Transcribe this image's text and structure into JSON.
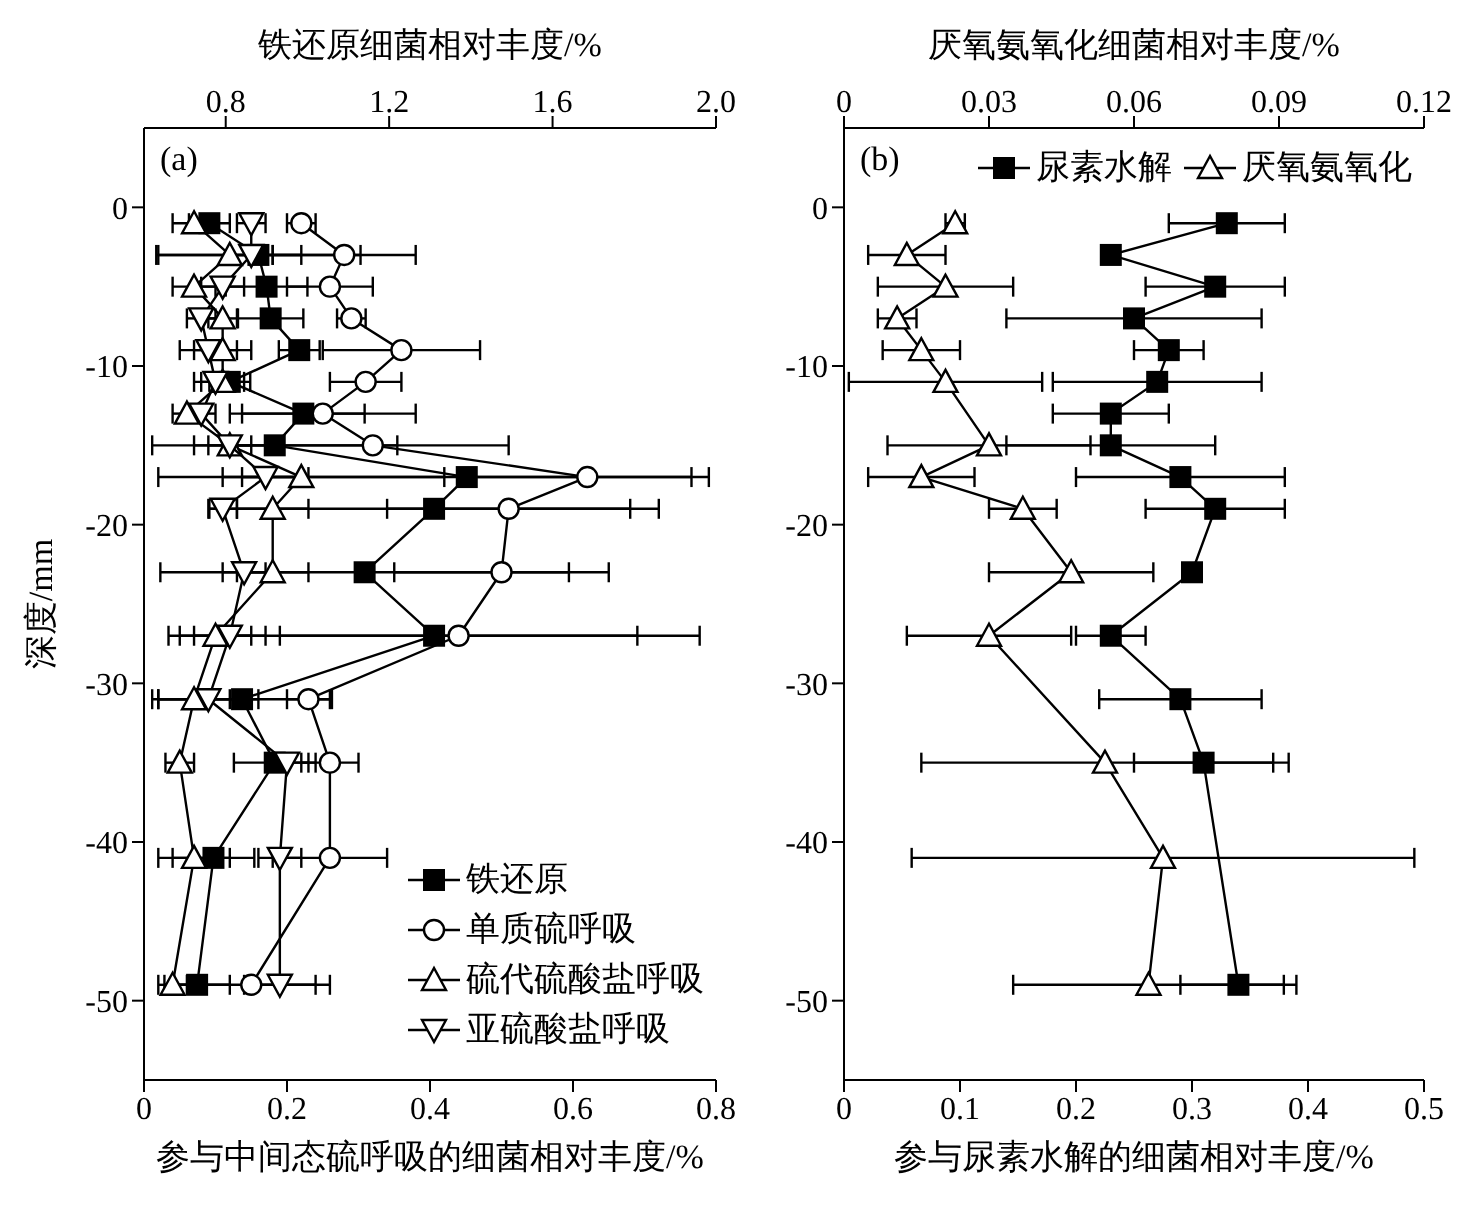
{
  "chart_data": [
    {
      "type": "line",
      "annotations": [
        "(a)"
      ],
      "xlabel": "参与中间态硫呼吸的细菌相对丰度/%",
      "x2label": "铁还原细菌相对丰度/%",
      "ylabel": "深度/mm",
      "xlim": [
        0,
        0.8
      ],
      "xticks": [
        0,
        {
          "value": 0.2,
          "label": "0.2"
        },
        {
          "value": 0.4,
          "label": "0.4"
        },
        {
          "value": 0.6,
          "label": "0.6"
        },
        {
          "value": 0.8,
          "label": "0.8"
        }
      ],
      "x2lim": [
        0.6,
        2.0
      ],
      "x2ticks": [
        {
          "value": 0.8,
          "label": "0.8"
        },
        {
          "value": 1.2,
          "label": "1.2"
        },
        {
          "value": 1.6,
          "label": "1.6"
        },
        {
          "value": 2.0,
          "label": "2.0"
        }
      ],
      "ylim": [
        -55,
        5
      ],
      "yticks": [
        0,
        -10,
        -20,
        -30,
        -40,
        -50
      ],
      "legend": "bottom right",
      "series": [
        {
          "name": "铁还原",
          "color": "#000000",
          "values": [
            -1,
            -3,
            -5,
            -7,
            -9,
            -11,
            -13,
            -15,
            -17,
            -19,
            -23,
            -27,
            -31,
            -35,
            -41,
            -49
          ],
          "marker": "square",
          "axis": "x2",
          "x": [
            0.76,
            0.88,
            0.9,
            0.91,
            0.98,
            0.81,
            0.99,
            0.92,
            1.39,
            1.31,
            1.14,
            1.31,
            0.84,
            0.92,
            0.77,
            0.73
          ],
          "xerrors": [
            0.05,
            0.25,
            0.1,
            0.08,
            0.05,
            0.05,
            0.15,
            0.3,
            0.55,
            0.55,
            0.5,
            0.65,
            0.22,
            0.1,
            0.1,
            0.08
          ]
        },
        {
          "name": "单质硫呼吸",
          "color": "#000000",
          "values": [
            -1,
            -3,
            -5,
            -7,
            -9,
            -11,
            -13,
            -15,
            -17,
            -19,
            -23,
            -27,
            -31,
            -35,
            -41,
            -49
          ],
          "marker": "circle",
          "x": [
            0.22,
            0.28,
            0.26,
            0.29,
            0.36,
            0.31,
            0.25,
            0.32,
            0.62,
            0.51,
            0.5,
            0.44,
            0.23,
            0.26,
            0.26,
            0.15
          ],
          "xerrors": [
            0.02,
            0.1,
            0.06,
            0.02,
            0.11,
            0.05,
            0.13,
            0.19,
            0.17,
            0.17,
            0.15,
            0.25,
            0.03,
            0.04,
            0.08,
            0.11
          ]
        },
        {
          "name": "硫代硫酸盐呼吸",
          "color": "#000000",
          "values": [
            -1,
            -3,
            -5,
            -7,
            -9,
            -11,
            -13,
            -15,
            -17,
            -19,
            -23,
            -27,
            -31,
            -35,
            -41,
            -49
          ],
          "marker": "triangle",
          "x": [
            0.07,
            0.12,
            0.07,
            0.11,
            0.11,
            0.11,
            0.06,
            0.12,
            0.22,
            0.18,
            0.18,
            0.1,
            0.07,
            0.05,
            0.07,
            0.04
          ],
          "xerrors": [
            0.03,
            0.1,
            0.03,
            0.02,
            0.04,
            0.03,
            0.02,
            0.05,
            0.2,
            0.05,
            0.05,
            0.05,
            0.05,
            0.02,
            0.05,
            0.02
          ]
        },
        {
          "name": "亚硫酸盐呼吸",
          "color": "#000000",
          "values": [
            -1,
            -3,
            -5,
            -7,
            -9,
            -11,
            -13,
            -15,
            -17,
            -19,
            -23,
            -27,
            -31,
            -35,
            -41,
            -49
          ],
          "marker": "triangle-down",
          "x": [
            0.15,
            0.15,
            0.11,
            0.08,
            0.09,
            0.1,
            0.08,
            0.12,
            0.17,
            0.11,
            0.14,
            0.12,
            0.09,
            0.2,
            0.19,
            0.19
          ],
          "xerrors": [
            0.02,
            0.03,
            0.03,
            0.02,
            0.04,
            0.03,
            0.02,
            0.03,
            0.06,
            0.02,
            0.03,
            0.05,
            0.07,
            0.03,
            0.03,
            0.05
          ]
        }
      ]
    },
    {
      "type": "line",
      "annotations": [
        "(b)"
      ],
      "xlabel": "参与尿素水解的细菌相对丰度/%",
      "x2label": "厌氧氨氧化细菌相对丰度/%",
      "xlim": [
        0,
        0.5
      ],
      "xticks": [
        0,
        {
          "value": 0.1,
          "label": "0.1"
        },
        {
          "value": 0.2,
          "label": "0.2"
        },
        {
          "value": 0.3,
          "label": "0.3"
        },
        {
          "value": 0.4,
          "label": "0.4"
        },
        {
          "value": 0.5,
          "label": "0.5"
        }
      ],
      "x2lim": [
        0,
        0.12
      ],
      "x2ticks": [
        0,
        0.03,
        0.06,
        0.09,
        0.12
      ],
      "ylim": [
        -55,
        5
      ],
      "yticks": [
        0,
        -10,
        -20,
        -30,
        -40,
        -50
      ],
      "legend": "top right",
      "series": [
        {
          "name": "尿素水解",
          "color": "#000000",
          "values": [
            -1,
            -3,
            -5,
            -7,
            -9,
            -11,
            -13,
            -15,
            -17,
            -19,
            -23,
            -27,
            -31,
            -35,
            null,
            -49
          ],
          "marker": "square",
          "x": [
            0.33,
            0.23,
            0.32,
            0.25,
            0.28,
            0.27,
            0.23,
            0.23,
            0.29,
            0.32,
            0.3,
            0.23,
            0.29,
            0.31,
            null,
            0.34
          ],
          "xerrors": [
            0.05,
            null,
            0.06,
            0.11,
            0.03,
            0.09,
            0.05,
            0.09,
            0.09,
            0.06,
            null,
            0.03,
            0.07,
            0.06,
            null,
            0.05
          ]
        },
        {
          "name": "厌氧氨氧化",
          "color": "#000000",
          "values": [
            -1,
            -3,
            -5,
            -7,
            -9,
            -11,
            null,
            -15,
            -17,
            -19,
            -23,
            -27,
            null,
            -35,
            -41,
            -49
          ],
          "marker": "triangle",
          "axis": "x2",
          "x": [
            0.023,
            0.013,
            0.021,
            0.011,
            0.016,
            0.021,
            null,
            0.03,
            0.016,
            0.037,
            0.047,
            0.03,
            null,
            0.054,
            0.066,
            0.063
          ],
          "xerrors": [
            0.002,
            0.008,
            0.014,
            0.004,
            0.008,
            0.02,
            null,
            0.021,
            0.011,
            0.007,
            0.017,
            0.017,
            null,
            0.038,
            0.052,
            0.028
          ]
        }
      ]
    }
  ]
}
